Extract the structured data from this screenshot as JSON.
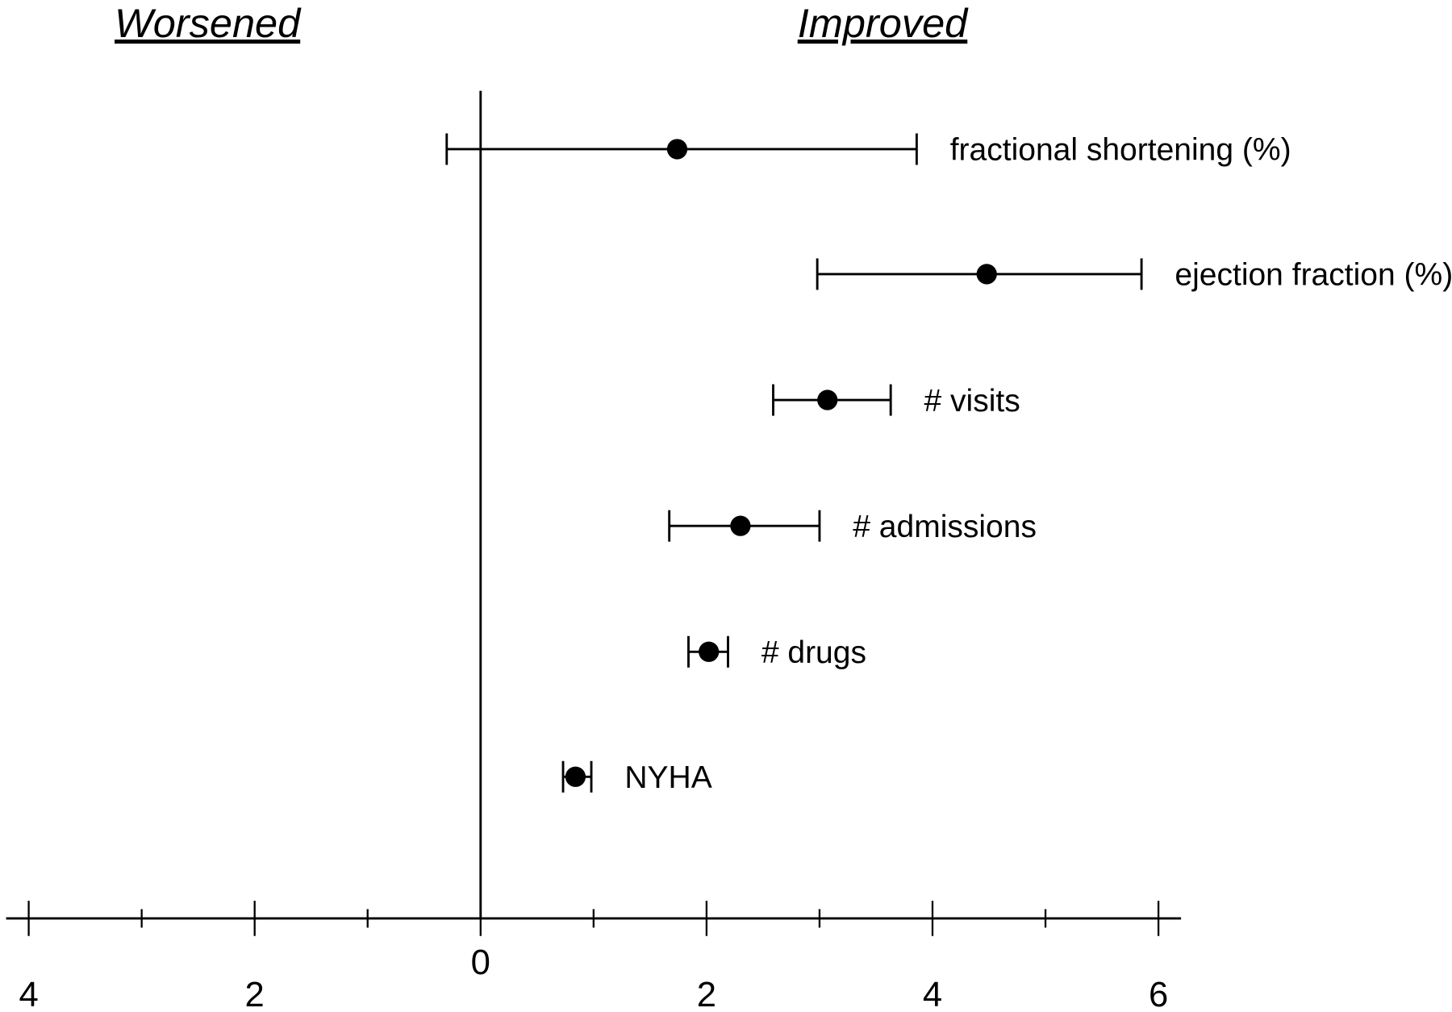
{
  "chart_data": {
    "type": "forest",
    "header_left": "Worsened",
    "header_right": "Improved",
    "xlim": [
      -4.2,
      6.2
    ],
    "x_ticks": [
      -4,
      -3,
      -2,
      -1,
      0,
      1,
      2,
      3,
      4,
      5,
      6
    ],
    "x_tick_labels": [
      {
        "value": -4,
        "label": "4"
      },
      {
        "value": -2,
        "label": "2"
      },
      {
        "value": 0,
        "label": "0"
      },
      {
        "value": 2,
        "label": "2"
      },
      {
        "value": 4,
        "label": "4"
      },
      {
        "value": 6,
        "label": "6"
      }
    ],
    "grid": false,
    "color": "#000000",
    "series": [
      {
        "label": "fractional shortening (%)",
        "estimate": 1.74,
        "lower": -0.3,
        "upper": 3.86
      },
      {
        "label": "ejection fraction (%)",
        "estimate": 4.48,
        "lower": 2.98,
        "upper": 5.85
      },
      {
        "label": "# visits",
        "estimate": 3.07,
        "lower": 2.59,
        "upper": 3.63
      },
      {
        "label": "# admissions",
        "estimate": 2.3,
        "lower": 1.67,
        "upper": 3.0
      },
      {
        "label": "# drugs",
        "estimate": 2.02,
        "lower": 1.84,
        "upper": 2.19
      },
      {
        "label": "NYHA",
        "estimate": 0.84,
        "lower": 0.73,
        "upper": 0.98
      }
    ]
  }
}
